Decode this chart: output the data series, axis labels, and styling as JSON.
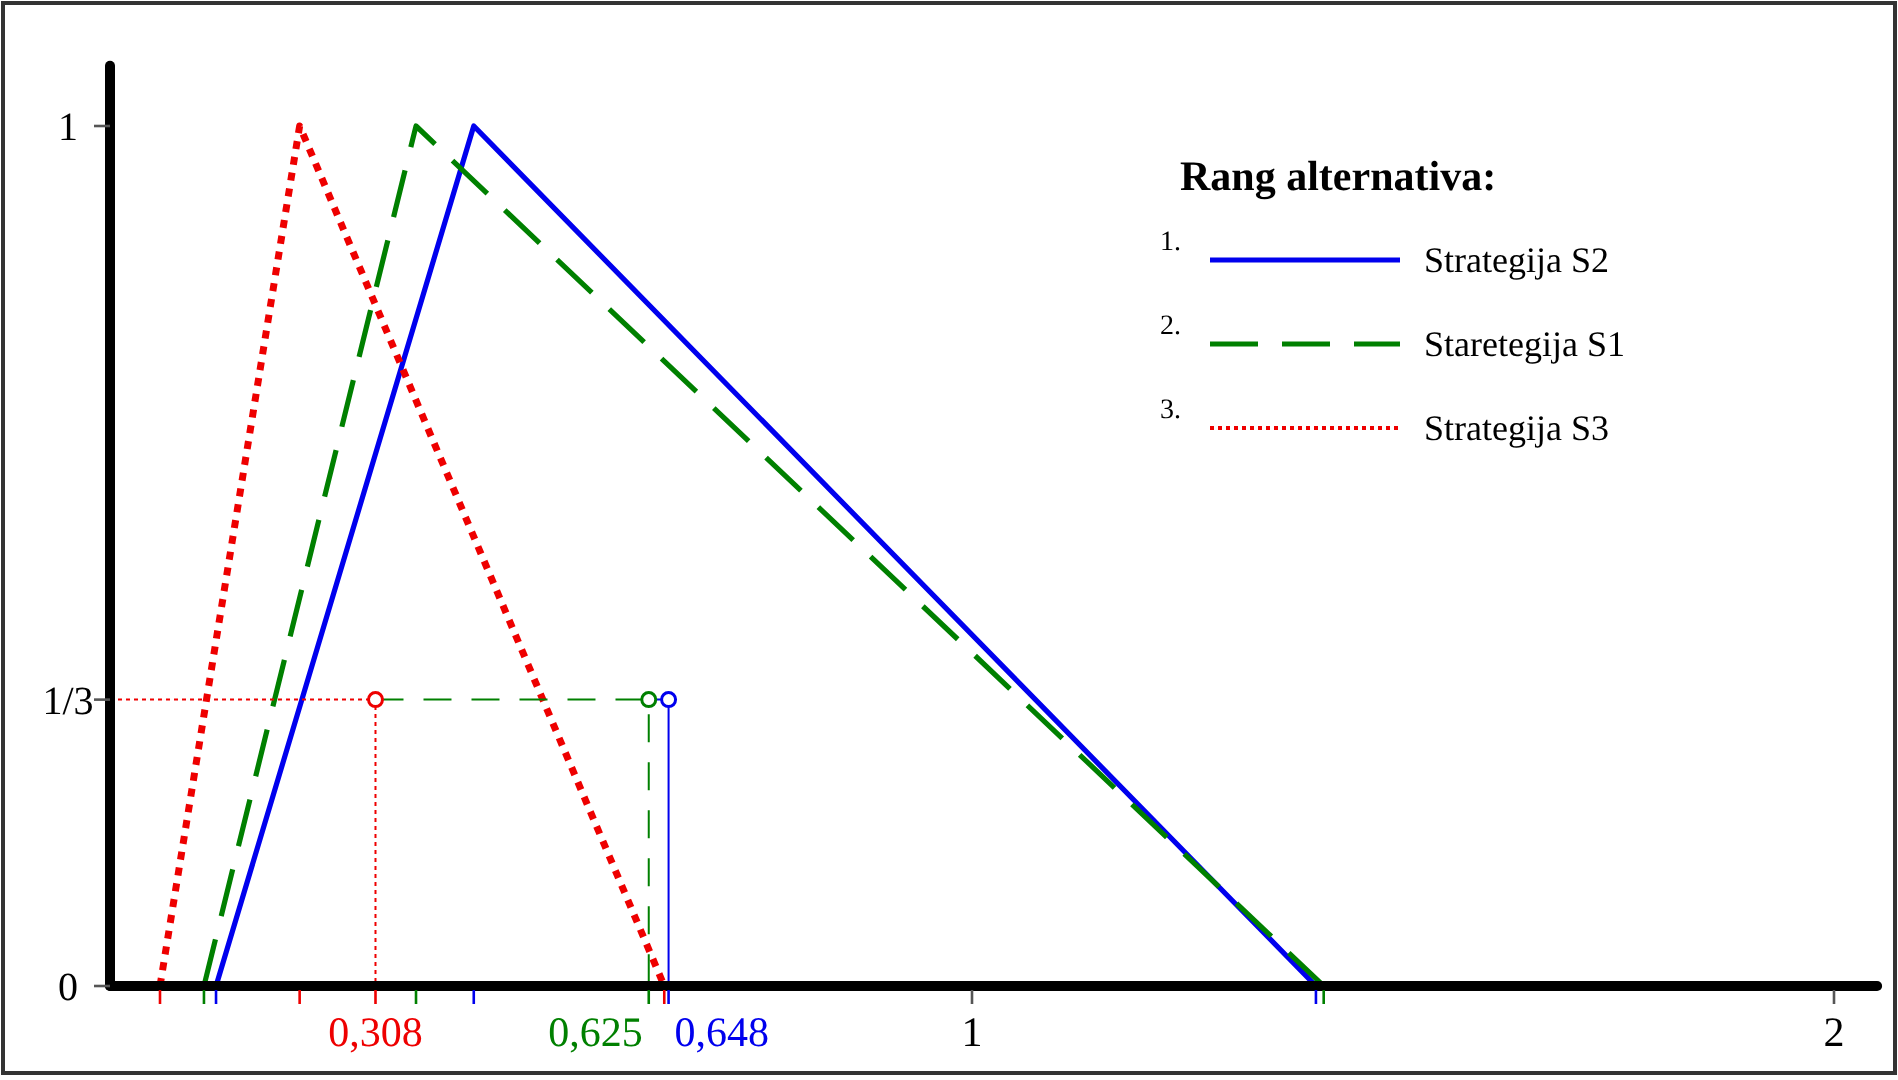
{
  "chart_data": {
    "type": "line",
    "legend_title": "Rang alternativa:",
    "legend": "top right",
    "grid": false,
    "marker": "none",
    "xlim": [
      0,
      2.05
    ],
    "ylim": [
      0,
      1.07
    ],
    "xticks": [
      {
        "value": 0.058,
        "label": null
      },
      {
        "value": 0.109,
        "label": null
      },
      {
        "value": 0.123,
        "label": null
      },
      {
        "value": 0.22,
        "label": null
      },
      {
        "value": 0.308,
        "label": "0,308"
      },
      {
        "value": 0.355,
        "label": null
      },
      {
        "value": 0.422,
        "label": null
      },
      {
        "value": 0.625,
        "label": null
      },
      {
        "value": 0.643,
        "label": null
      },
      {
        "value": 0.648,
        "label": null
      },
      {
        "value": 1,
        "label": "1"
      },
      {
        "value": 1.399,
        "label": null
      },
      {
        "value": 1.408,
        "label": null
      },
      {
        "value": 2,
        "label": "2"
      }
    ],
    "yticks": [
      0,
      {
        "value": 0.333,
        "label": "1/3"
      },
      1
    ],
    "annotations": [
      "1.",
      "2.",
      "3.",
      {
        "text": "0,625",
        "x": 0.625,
        "y": 0
      },
      {
        "text": "0,648",
        "x": 0.648,
        "y": 0
      }
    ],
    "series": [
      {
        "name": "Strategija S2",
        "color": "#0000ee",
        "line_style": "solid",
        "x": [
          0.123,
          0.422,
          1.399
        ],
        "values": [
          0,
          1,
          0
        ]
      },
      {
        "name": "Staretegija S1",
        "color": "#008000",
        "line_style": "dashed",
        "x": [
          0.109,
          0.355,
          1.408
        ],
        "values": [
          0,
          1,
          0
        ]
      },
      {
        "name": "Strategija S3",
        "color": "#ee0000",
        "line_style": "dotted",
        "x": [
          0.058,
          0.22,
          0.643
        ],
        "values": [
          0,
          1,
          0
        ]
      },
      {
        "color": "#ee0000",
        "line_style": "dotted",
        "x": [
          0,
          0.308,
          0.308
        ],
        "values": [
          0.333,
          0.333,
          0
        ]
      },
      {
        "color": "#008000",
        "line_style": "dashed",
        "x": [
          0.308,
          0.625,
          0.625
        ],
        "values": [
          0.333,
          0.333,
          0
        ]
      },
      {
        "color": "#0000ee",
        "line_style": "solid",
        "x": [
          0.625,
          0.648,
          0.648
        ],
        "values": [
          0.333,
          0.333,
          0
        ]
      },
      {
        "type": "scatter",
        "marker": "circle",
        "color": "#ee0000",
        "x": [
          0.308
        ],
        "values": [
          0.333
        ]
      },
      {
        "type": "scatter",
        "marker": "circle",
        "color": "#008000",
        "x": [
          0.625
        ],
        "values": [
          0.333
        ]
      },
      {
        "type": "scatter",
        "marker": "circle",
        "color": "#0000ee",
        "x": [
          0.648
        ],
        "values": [
          0.333
        ]
      }
    ]
  }
}
